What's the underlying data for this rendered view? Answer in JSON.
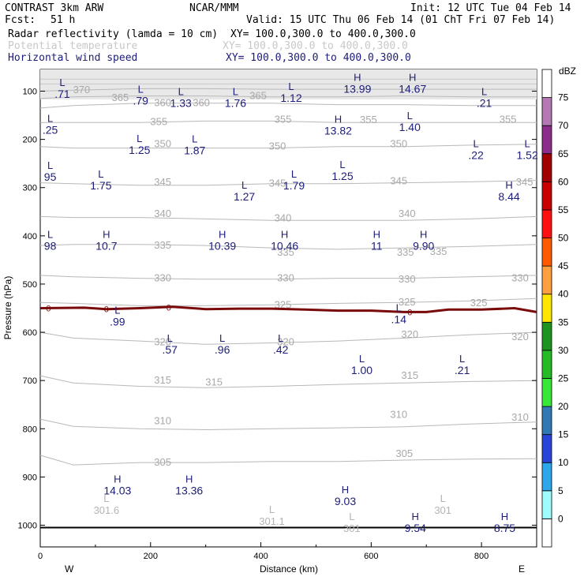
{
  "header": {
    "model": "CONTRAST  3km ARW",
    "org": "NCAR/MMM",
    "init": "Init: 12 UTC Tue 04 Feb 14",
    "fcst_label": "Fcst:",
    "fcst_value": "51 h",
    "valid": "Valid: 15 UTC Thu 06 Feb 14 (01 ChT Fri 07 Feb 14)",
    "field1": "Radar reflectivity (lamda = 10 cm)",
    "field2": "Potential temperature",
    "field3": "Horizontal wind speed",
    "xy1": "XY= 100.0,300.0 to 400.0,300.0",
    "xy2": "XY= 100.0,300.0 to 400.0,300.0",
    "xy3": "XY= 100.0,300.0 to 400.0,300.0",
    "colors": {
      "field1": "#000000",
      "field2": "#c8c8c8",
      "field3": "#1c1c7a"
    }
  },
  "chart_data": {
    "type": "cross-section",
    "x_label": "Distance (km)",
    "y_label": "Pressure (hPa)",
    "xlim": [
      0,
      900
    ],
    "ylim": [
      1045,
      55
    ],
    "x_ticks": [
      "0",
      "200",
      "400",
      "600",
      "800"
    ],
    "x_tick_values": [
      0,
      200,
      400,
      600,
      800
    ],
    "y_ticks": [
      "100",
      "200",
      "300",
      "400",
      "500",
      "600",
      "700",
      "800",
      "900",
      "1000"
    ],
    "y_tick_values": [
      100,
      200,
      300,
      400,
      500,
      600,
      700,
      800,
      900,
      1000
    ],
    "west_label": "W",
    "east_label": "E",
    "ground_pressure": 1005,
    "theta_isolines": [
      {
        "value": 305,
        "points": [
          [
            0,
            855
          ],
          [
            60,
            875
          ],
          [
            180,
            870
          ],
          [
            300,
            870
          ],
          [
            420,
            868
          ],
          [
            540,
            868
          ],
          [
            660,
            865
          ],
          [
            780,
            863
          ],
          [
            900,
            862
          ]
        ]
      },
      {
        "value": 310,
        "points": [
          [
            0,
            780
          ],
          [
            60,
            795
          ],
          [
            180,
            800
          ],
          [
            300,
            802
          ],
          [
            420,
            800
          ],
          [
            540,
            798
          ],
          [
            660,
            796
          ],
          [
            780,
            790
          ],
          [
            900,
            786
          ]
        ]
      },
      {
        "value": 315,
        "points": [
          [
            0,
            690
          ],
          [
            60,
            705
          ],
          [
            180,
            712
          ],
          [
            300,
            715
          ],
          [
            420,
            712
          ],
          [
            540,
            708
          ],
          [
            660,
            705
          ],
          [
            780,
            702
          ],
          [
            900,
            700
          ]
        ]
      },
      {
        "value": 320,
        "points": [
          [
            0,
            600
          ],
          [
            60,
            612
          ],
          [
            180,
            618
          ],
          [
            300,
            625
          ],
          [
            420,
            622
          ],
          [
            540,
            618
          ],
          [
            660,
            612
          ],
          [
            780,
            605
          ],
          [
            900,
            600
          ]
        ]
      },
      {
        "value": 325,
        "points": [
          [
            0,
            538
          ],
          [
            60,
            540
          ],
          [
            180,
            545
          ],
          [
            300,
            545
          ],
          [
            420,
            543
          ],
          [
            540,
            540
          ],
          [
            660,
            538
          ],
          [
            780,
            535
          ],
          [
            900,
            530
          ]
        ]
      },
      {
        "value": 330,
        "points": [
          [
            0,
            482
          ],
          [
            60,
            485
          ],
          [
            180,
            488
          ],
          [
            300,
            490
          ],
          [
            420,
            490
          ],
          [
            540,
            488
          ],
          [
            660,
            488
          ],
          [
            780,
            485
          ],
          [
            900,
            482
          ]
        ]
      },
      {
        "value": 335,
        "points": [
          [
            0,
            420
          ],
          [
            60,
            418
          ],
          [
            180,
            418
          ],
          [
            300,
            420
          ],
          [
            420,
            425
          ],
          [
            540,
            428
          ],
          [
            660,
            425
          ],
          [
            780,
            422
          ],
          [
            900,
            418
          ]
        ]
      },
      {
        "value": 340,
        "points": [
          [
            0,
            360
          ],
          [
            60,
            362
          ],
          [
            180,
            362
          ],
          [
            300,
            365
          ],
          [
            420,
            368
          ],
          [
            540,
            368
          ],
          [
            660,
            368
          ],
          [
            780,
            365
          ],
          [
            900,
            360
          ]
        ]
      },
      {
        "value": 345,
        "points": [
          [
            0,
            290
          ],
          [
            60,
            292
          ],
          [
            180,
            295
          ],
          [
            300,
            295
          ],
          [
            420,
            292
          ],
          [
            540,
            292
          ],
          [
            660,
            290
          ],
          [
            780,
            288
          ],
          [
            900,
            285
          ]
        ]
      },
      {
        "value": 350,
        "points": [
          [
            0,
            215
          ],
          [
            60,
            218
          ],
          [
            180,
            218
          ],
          [
            300,
            218
          ],
          [
            420,
            218
          ],
          [
            540,
            215
          ],
          [
            660,
            215
          ],
          [
            780,
            212
          ],
          [
            900,
            210
          ]
        ]
      },
      {
        "value": 355,
        "points": [
          [
            0,
            165
          ],
          [
            60,
            165
          ],
          [
            180,
            165
          ],
          [
            300,
            162
          ],
          [
            420,
            162
          ],
          [
            540,
            165
          ],
          [
            660,
            165
          ],
          [
            780,
            165
          ],
          [
            900,
            165
          ]
        ]
      },
      {
        "value": 360,
        "points": [
          [
            0,
            135
          ],
          [
            60,
            130
          ],
          [
            180,
            125
          ],
          [
            300,
            125
          ],
          [
            420,
            125
          ],
          [
            540,
            128
          ],
          [
            660,
            128
          ],
          [
            780,
            130
          ],
          [
            900,
            130
          ]
        ]
      },
      {
        "value": 365,
        "points": [
          [
            0,
            115
          ],
          [
            60,
            112
          ],
          [
            180,
            110
          ],
          [
            300,
            110
          ],
          [
            420,
            112
          ],
          [
            540,
            112
          ],
          [
            660,
            110
          ],
          [
            780,
            112
          ],
          [
            900,
            112
          ]
        ]
      },
      {
        "value": 370,
        "points": [
          [
            0,
            100
          ],
          [
            60,
            98
          ],
          [
            180,
            95
          ],
          [
            300,
            95
          ],
          [
            420,
            96
          ],
          [
            540,
            96
          ],
          [
            660,
            96
          ],
          [
            780,
            96
          ],
          [
            900,
            96
          ]
        ]
      }
    ],
    "zero_contour": {
      "value": "0",
      "points": [
        [
          0,
          550
        ],
        [
          80,
          549
        ],
        [
          120,
          552
        ],
        [
          180,
          550
        ],
        [
          240,
          547
        ],
        [
          300,
          552
        ],
        [
          360,
          551
        ],
        [
          420,
          551
        ],
        [
          480,
          553
        ],
        [
          540,
          555
        ],
        [
          600,
          555
        ],
        [
          660,
          558
        ],
        [
          700,
          558
        ],
        [
          740,
          553
        ],
        [
          800,
          553
        ],
        [
          860,
          550
        ],
        [
          900,
          558
        ]
      ]
    },
    "theta_labels": [
      {
        "text": "370",
        "x": 75,
        "p": 96
      },
      {
        "text": "365",
        "x": 145,
        "p": 112
      },
      {
        "text": "360",
        "x": 222,
        "p": 123
      },
      {
        "text": "360",
        "x": 292,
        "p": 123
      },
      {
        "text": "365",
        "x": 395,
        "p": 108
      },
      {
        "text": "355",
        "x": 215,
        "p": 162
      },
      {
        "text": "355",
        "x": 440,
        "p": 157
      },
      {
        "text": "355",
        "x": 595,
        "p": 158
      },
      {
        "text": "355",
        "x": 848,
        "p": 157
      },
      {
        "text": "350",
        "x": 222,
        "p": 208
      },
      {
        "text": "350",
        "x": 430,
        "p": 213
      },
      {
        "text": "350",
        "x": 650,
        "p": 208
      },
      {
        "text": "345",
        "x": 222,
        "p": 287
      },
      {
        "text": "345",
        "x": 430,
        "p": 290
      },
      {
        "text": "345",
        "x": 650,
        "p": 285
      },
      {
        "text": "345",
        "x": 878,
        "p": 287
      },
      {
        "text": "340",
        "x": 222,
        "p": 353
      },
      {
        "text": "340",
        "x": 440,
        "p": 362
      },
      {
        "text": "340",
        "x": 665,
        "p": 353
      },
      {
        "text": "335",
        "x": 222,
        "p": 418
      },
      {
        "text": "335",
        "x": 445,
        "p": 433
      },
      {
        "text": "335",
        "x": 662,
        "p": 433
      },
      {
        "text": "335",
        "x": 722,
        "p": 431
      },
      {
        "text": "330",
        "x": 222,
        "p": 486
      },
      {
        "text": "330",
        "x": 445,
        "p": 486
      },
      {
        "text": "330",
        "x": 665,
        "p": 489
      },
      {
        "text": "330",
        "x": 870,
        "p": 486
      },
      {
        "text": "325",
        "x": 440,
        "p": 542
      },
      {
        "text": "325",
        "x": 665,
        "p": 536
      },
      {
        "text": "325",
        "x": 795,
        "p": 538
      },
      {
        "text": "320",
        "x": 222,
        "p": 619
      },
      {
        "text": "320",
        "x": 445,
        "p": 619
      },
      {
        "text": "320",
        "x": 670,
        "p": 603
      },
      {
        "text": "320",
        "x": 870,
        "p": 608
      },
      {
        "text": "315",
        "x": 222,
        "p": 698
      },
      {
        "text": "315",
        "x": 315,
        "p": 702
      },
      {
        "text": "315",
        "x": 670,
        "p": 688
      },
      {
        "text": "310",
        "x": 222,
        "p": 782
      },
      {
        "text": "310",
        "x": 650,
        "p": 769
      },
      {
        "text": "310",
        "x": 870,
        "p": 775
      },
      {
        "text": "305",
        "x": 222,
        "p": 868
      },
      {
        "text": "305",
        "x": 660,
        "p": 850
      }
    ],
    "wind_extrema": [
      {
        "type": "L",
        "value": ".71",
        "x": 40,
        "p": 96
      },
      {
        "type": "L",
        "value": ".79",
        "x": 182,
        "p": 110
      },
      {
        "type": "L",
        "value": "1.33",
        "x": 255,
        "p": 115
      },
      {
        "type": "L",
        "value": "1.76",
        "x": 354,
        "p": 115
      },
      {
        "type": "L",
        "value": "1.12",
        "x": 455,
        "p": 104
      },
      {
        "type": "H",
        "value": "13.99",
        "x": 575,
        "p": 85
      },
      {
        "type": "H",
        "value": "14.67",
        "x": 675,
        "p": 85
      },
      {
        "type": "L",
        "value": ".21",
        "x": 805,
        "p": 115
      },
      {
        "type": "L",
        "value": ".25",
        "x": 18,
        "p": 170
      },
      {
        "type": "H",
        "value": "13.82",
        "x": 540,
        "p": 172
      },
      {
        "type": "L",
        "value": "1.40",
        "x": 670,
        "p": 165
      },
      {
        "type": "L",
        "value": "1.25",
        "x": 180,
        "p": 212
      },
      {
        "type": "L",
        "value": "1.87",
        "x": 280,
        "p": 213
      },
      {
        "type": "L",
        "value": ".22",
        "x": 790,
        "p": 223
      },
      {
        "type": "L",
        "value": "1.52",
        "x": 883,
        "p": 223
      },
      {
        "type": "L",
        "value": "95",
        "x": 18,
        "p": 268
      },
      {
        "type": "L",
        "value": "1.75",
        "x": 110,
        "p": 286
      },
      {
        "type": "L",
        "value": "1.79",
        "x": 460,
        "p": 286
      },
      {
        "type": "L",
        "value": "1.25",
        "x": 548,
        "p": 266
      },
      {
        "type": "L",
        "value": "1.27",
        "x": 370,
        "p": 309
      },
      {
        "type": "H",
        "value": "8.44",
        "x": 850,
        "p": 309
      },
      {
        "type": "L",
        "value": "98",
        "x": 18,
        "p": 411
      },
      {
        "type": "H",
        "value": "10.7",
        "x": 120,
        "p": 411
      },
      {
        "type": "H",
        "value": "10.39",
        "x": 330,
        "p": 411
      },
      {
        "type": "H",
        "value": "10.46",
        "x": 443,
        "p": 411
      },
      {
        "type": "H",
        "value": "11",
        "x": 610,
        "p": 411
      },
      {
        "type": "H",
        "value": "9.90",
        "x": 695,
        "p": 411
      },
      {
        "type": "L",
        "value": ".99",
        "x": 140,
        "p": 568
      },
      {
        "type": "L",
        "value": ".14",
        "x": 650,
        "p": 563
      },
      {
        "type": "L",
        "value": ".57",
        "x": 235,
        "p": 626
      },
      {
        "type": "L",
        "value": ".96",
        "x": 330,
        "p": 626
      },
      {
        "type": "L",
        "value": ".42",
        "x": 436,
        "p": 626
      },
      {
        "type": "L",
        "value": "1.00",
        "x": 583,
        "p": 669
      },
      {
        "type": "L",
        "value": ".21",
        "x": 765,
        "p": 669
      },
      {
        "type": "H",
        "value": "14.03",
        "x": 140,
        "p": 918
      },
      {
        "type": "H",
        "value": "13.36",
        "x": 270,
        "p": 918
      },
      {
        "type": "H",
        "value": "9.03",
        "x": 553,
        "p": 940
      },
      {
        "type": "H",
        "value": "9.54",
        "x": 680,
        "p": 996
      },
      {
        "type": "H",
        "value": "8.75",
        "x": 842,
        "p": 996
      }
    ],
    "ground_lows": [
      {
        "type": "L",
        "value": "301.6",
        "x": 120,
        "p": 958
      },
      {
        "type": "L",
        "value": "301.1",
        "x": 420,
        "p": 981
      },
      {
        "type": "L",
        "value": "301",
        "x": 565,
        "p": 996
      },
      {
        "type": "L",
        "value": "301",
        "x": 730,
        "p": 958
      }
    ],
    "colorbar": {
      "unit": "dBZ",
      "levels": [
        "0",
        "5",
        "10",
        "15",
        "20",
        "25",
        "30",
        "35",
        "40",
        "45",
        "50",
        "55",
        "60",
        "65",
        "70",
        "75"
      ],
      "colors": [
        "#ffffff",
        "#9ffcfc",
        "#2ea6ea",
        "#2a44d8",
        "#3278b4",
        "#38e838",
        "#26ba26",
        "#1e941e",
        "#ffe600",
        "#ffa040",
        "#ff5a00",
        "#ff1010",
        "#c80000",
        "#a00000",
        "#8c2d8c",
        "#b478b4",
        "#ffffff"
      ]
    }
  }
}
